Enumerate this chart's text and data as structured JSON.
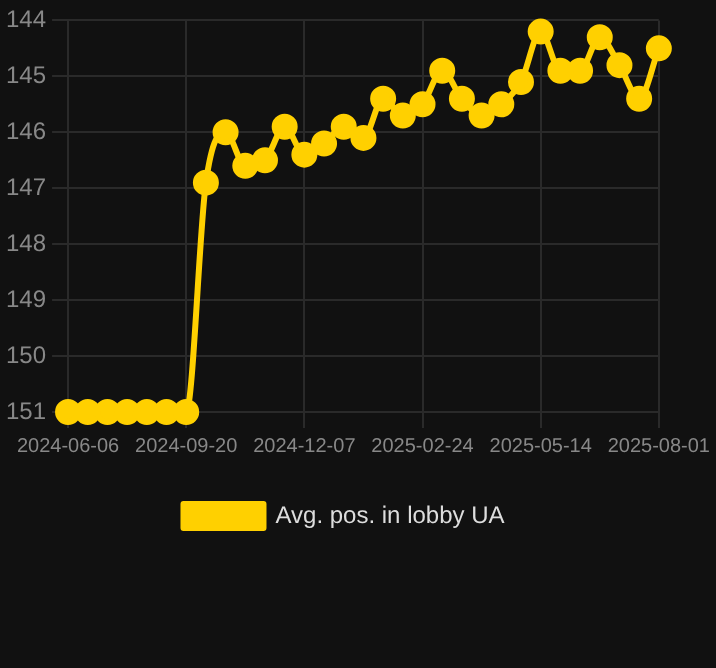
{
  "chart_data": {
    "type": "line",
    "categories": [
      "2024-06-06",
      null,
      null,
      null,
      null,
      null,
      "2024-09-20",
      null,
      null,
      null,
      null,
      null,
      "2024-12-07",
      null,
      null,
      null,
      null,
      null,
      "2025-02-24",
      null,
      null,
      null,
      null,
      null,
      "2025-05-14",
      null,
      null,
      null,
      null,
      null,
      "2025-08-01"
    ],
    "series": [
      {
        "name": "Avg. pos. in lobby UA",
        "color": "#ffd000",
        "values": [
          151,
          151,
          151,
          151,
          151,
          151,
          151,
          146.9,
          146,
          146.6,
          146.5,
          145.9,
          146.4,
          146.2,
          145.9,
          146.1,
          145.4,
          145.7,
          145.5,
          144.9,
          145.4,
          145.7,
          145.5,
          145.1,
          144.2,
          144.9,
          144.9,
          144.3,
          144.8,
          145.4,
          144.5
        ]
      }
    ],
    "ylim": [
      151,
      144
    ],
    "yticks": [
      144,
      145,
      146,
      147,
      148,
      149,
      150,
      151
    ],
    "grid": true,
    "legend": "bottom",
    "marker": "circle",
    "line_style": "solid"
  }
}
